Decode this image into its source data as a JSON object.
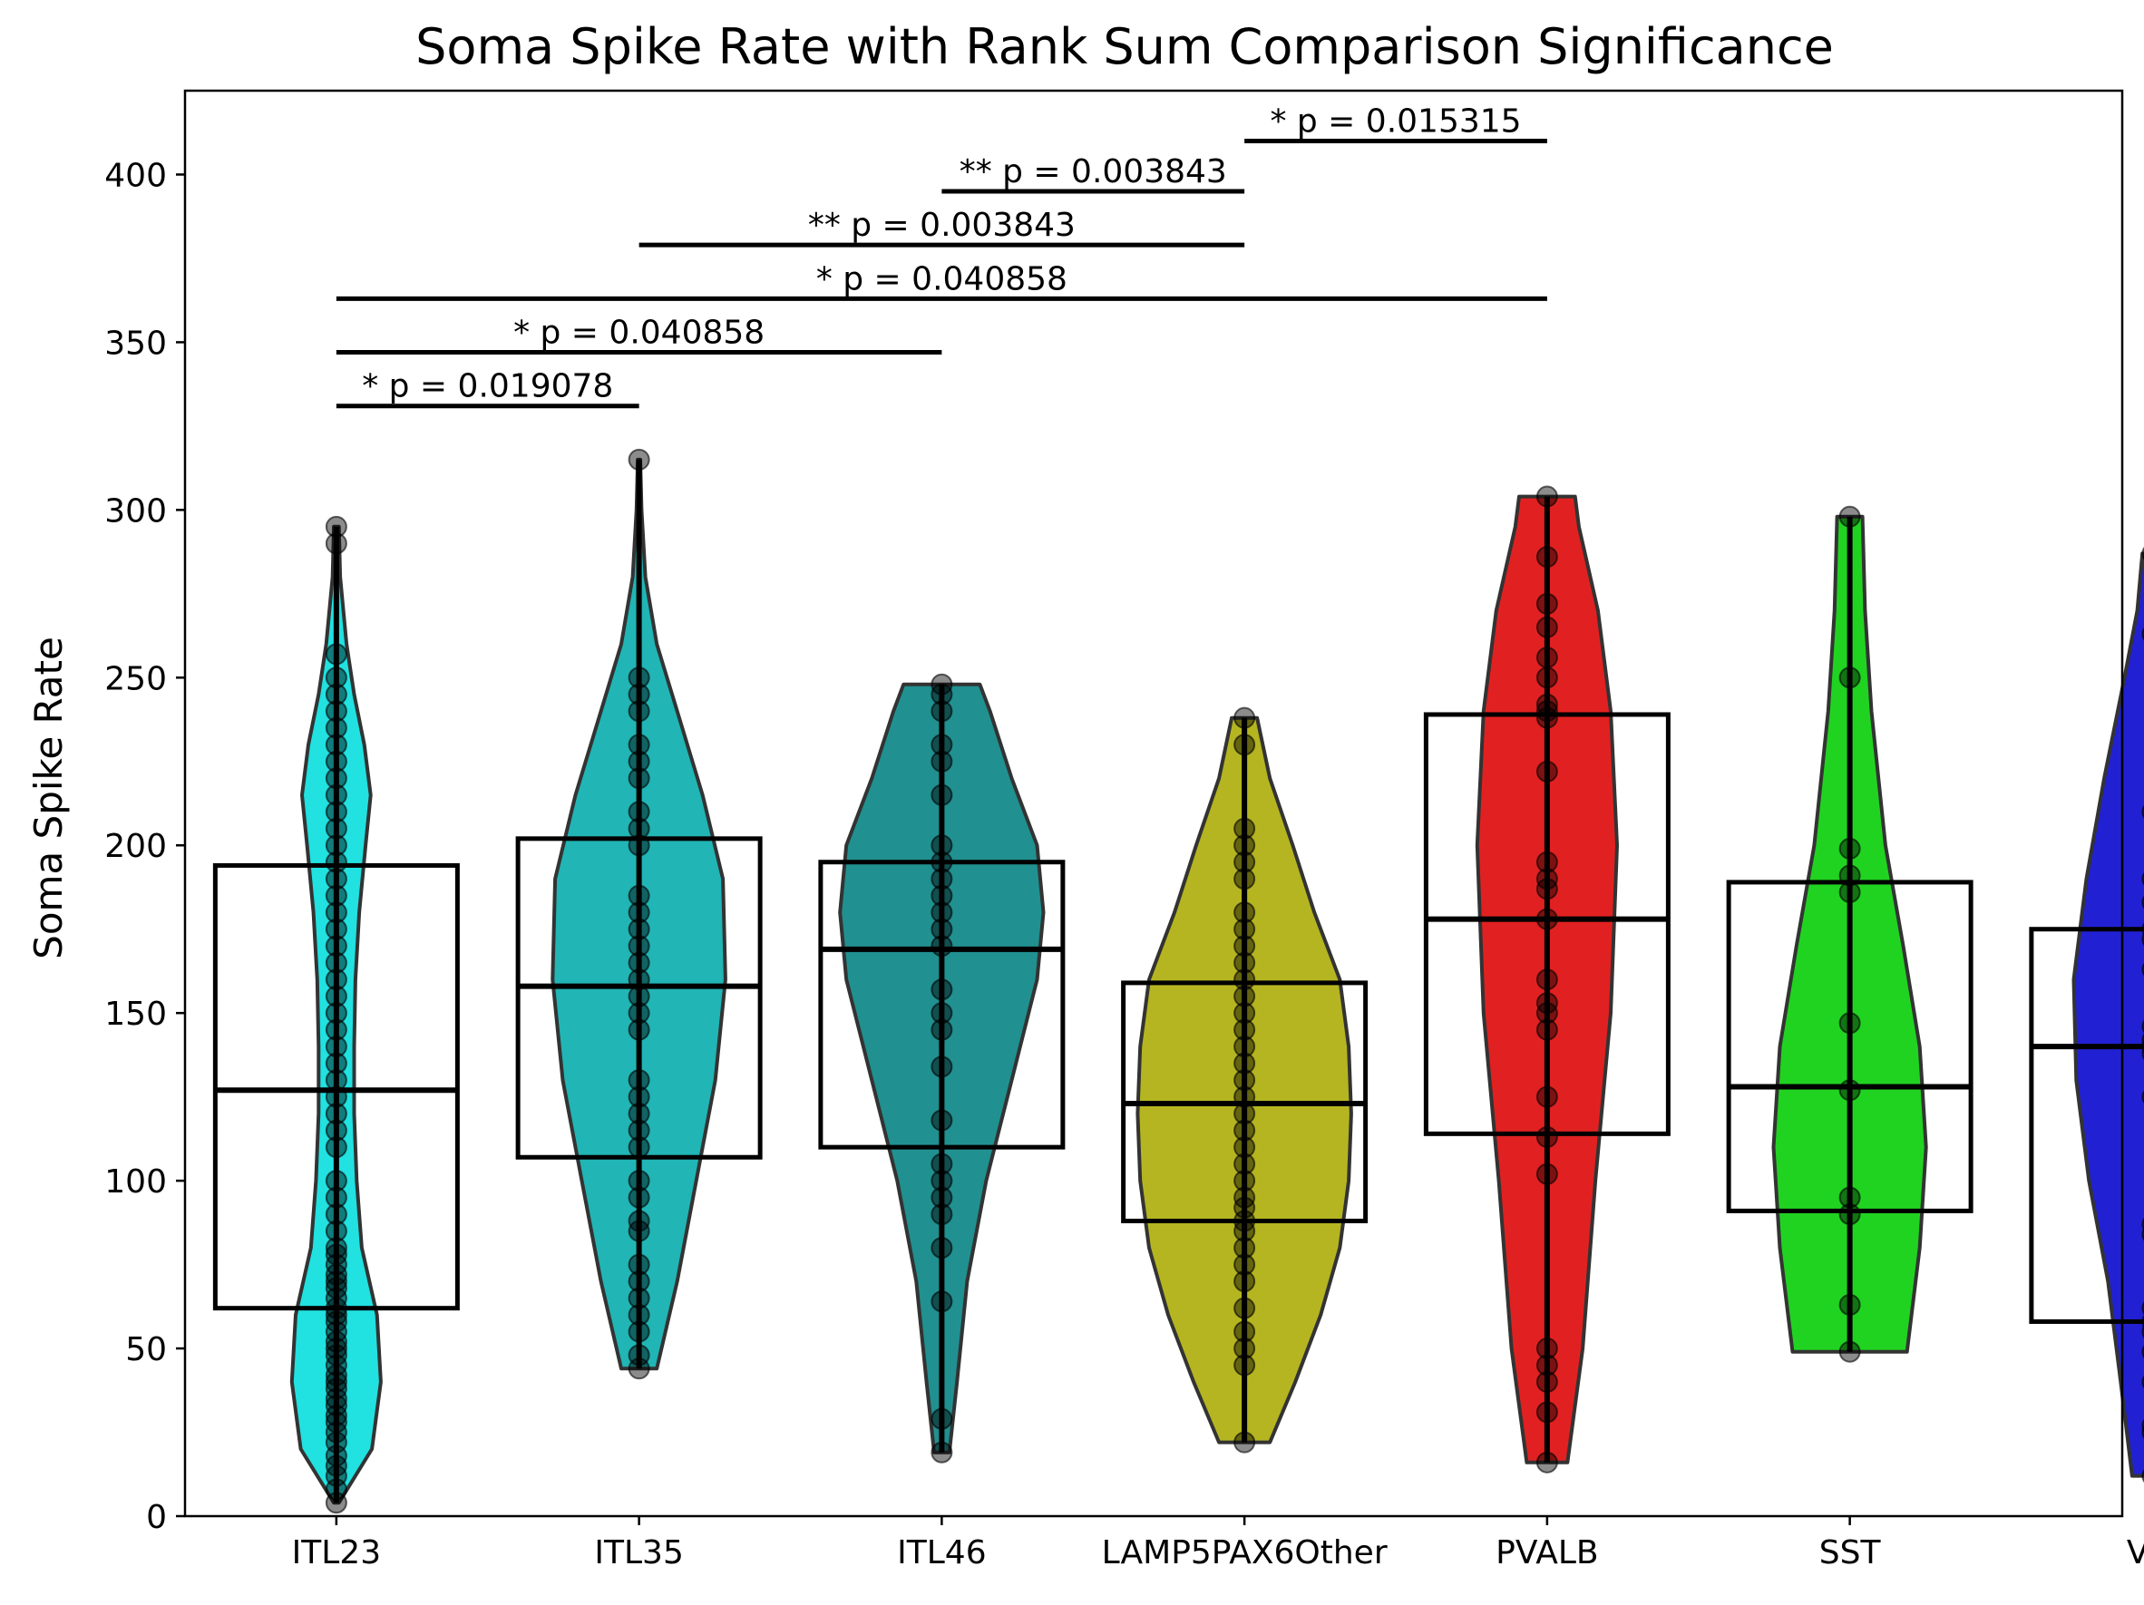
{
  "chart_data": {
    "type": "violin",
    "title": "Soma Spike Rate with Rank Sum Comparison Significance",
    "xlabel": "",
    "ylabel": "Soma Spike Rate",
    "ylim": [
      0,
      425
    ],
    "yticks": [
      0,
      50,
      100,
      150,
      200,
      250,
      300,
      350,
      400
    ],
    "categories": [
      "ITL23",
      "ITL35",
      "ITL46",
      "LAMP5PAX6Other",
      "PVALB",
      "SST",
      "VIP"
    ],
    "groups": [
      {
        "name": "ITL23",
        "color": "#00dddd",
        "min": 4,
        "max": 295,
        "q1": 62,
        "median": 127,
        "q3": 194,
        "points": [
          4,
          8,
          12,
          15,
          18,
          22,
          25,
          28,
          30,
          33,
          35,
          38,
          40,
          42,
          45,
          48,
          50,
          52,
          55,
          58,
          60,
          62,
          65,
          68,
          70,
          72,
          75,
          78,
          80,
          85,
          90,
          95,
          100,
          110,
          115,
          120,
          125,
          130,
          135,
          140,
          145,
          150,
          155,
          160,
          165,
          170,
          175,
          180,
          185,
          190,
          195,
          200,
          205,
          210,
          215,
          220,
          225,
          230,
          235,
          240,
          245,
          250,
          257,
          290,
          295
        ],
        "violin": [
          [
            4,
            0.02
          ],
          [
            20,
            0.28
          ],
          [
            40,
            0.35
          ],
          [
            60,
            0.32
          ],
          [
            80,
            0.2
          ],
          [
            100,
            0.16
          ],
          [
            120,
            0.14
          ],
          [
            140,
            0.14
          ],
          [
            160,
            0.15
          ],
          [
            180,
            0.18
          ],
          [
            200,
            0.23
          ],
          [
            215,
            0.27
          ],
          [
            230,
            0.22
          ],
          [
            245,
            0.14
          ],
          [
            260,
            0.08
          ],
          [
            280,
            0.03
          ],
          [
            295,
            0.02
          ]
        ]
      },
      {
        "name": "ITL35",
        "color": "#00aaaa",
        "min": 44,
        "max": 315,
        "q1": 107,
        "median": 158,
        "q3": 202,
        "points": [
          44,
          48,
          55,
          60,
          65,
          70,
          75,
          85,
          88,
          95,
          100,
          110,
          115,
          120,
          125,
          130,
          145,
          150,
          155,
          160,
          165,
          170,
          175,
          180,
          185,
          200,
          205,
          210,
          220,
          225,
          230,
          240,
          245,
          250,
          315
        ],
        "violin": [
          [
            44,
            0.14
          ],
          [
            70,
            0.3
          ],
          [
            100,
            0.45
          ],
          [
            130,
            0.6
          ],
          [
            160,
            0.68
          ],
          [
            190,
            0.66
          ],
          [
            215,
            0.5
          ],
          [
            240,
            0.3
          ],
          [
            260,
            0.14
          ],
          [
            280,
            0.05
          ],
          [
            300,
            0.02
          ],
          [
            315,
            0.01
          ]
        ]
      },
      {
        "name": "ITL46",
        "color": "#008080",
        "min": 19,
        "max": 248,
        "q1": 110,
        "median": 169,
        "q3": 195,
        "points": [
          19,
          29,
          64,
          80,
          90,
          95,
          100,
          105,
          118,
          134,
          145,
          150,
          157,
          170,
          175,
          180,
          185,
          190,
          195,
          200,
          215,
          225,
          230,
          240,
          245,
          248
        ],
        "violin": [
          [
            19,
            0.06
          ],
          [
            40,
            0.12
          ],
          [
            70,
            0.2
          ],
          [
            100,
            0.35
          ],
          [
            130,
            0.55
          ],
          [
            160,
            0.75
          ],
          [
            180,
            0.8
          ],
          [
            200,
            0.75
          ],
          [
            220,
            0.55
          ],
          [
            240,
            0.38
          ],
          [
            248,
            0.3
          ]
        ]
      },
      {
        "name": "LAMP5PAX6Other",
        "color": "#aaaa00",
        "min": 22,
        "max": 238,
        "q1": 88,
        "median": 123,
        "q3": 159,
        "points": [
          22,
          45,
          50,
          55,
          62,
          70,
          75,
          80,
          85,
          88,
          92,
          95,
          100,
          105,
          110,
          115,
          120,
          125,
          130,
          135,
          140,
          145,
          150,
          155,
          160,
          165,
          170,
          175,
          180,
          190,
          195,
          200,
          205,
          230,
          238
        ],
        "violin": [
          [
            22,
            0.2
          ],
          [
            40,
            0.4
          ],
          [
            60,
            0.6
          ],
          [
            80,
            0.75
          ],
          [
            100,
            0.82
          ],
          [
            120,
            0.84
          ],
          [
            140,
            0.82
          ],
          [
            160,
            0.75
          ],
          [
            180,
            0.55
          ],
          [
            200,
            0.38
          ],
          [
            220,
            0.2
          ],
          [
            238,
            0.1
          ]
        ]
      },
      {
        "name": "PVALB",
        "color": "#dd0000",
        "min": 16,
        "max": 304,
        "q1": 114,
        "median": 178,
        "q3": 239,
        "points": [
          16,
          31,
          40,
          45,
          50,
          102,
          113,
          125,
          145,
          150,
          153,
          160,
          178,
          187,
          190,
          195,
          222,
          238,
          240,
          242,
          250,
          256,
          265,
          272,
          286,
          304
        ],
        "violin": [
          [
            16,
            0.16
          ],
          [
            50,
            0.28
          ],
          [
            100,
            0.38
          ],
          [
            150,
            0.5
          ],
          [
            200,
            0.55
          ],
          [
            240,
            0.5
          ],
          [
            270,
            0.4
          ],
          [
            295,
            0.25
          ],
          [
            304,
            0.22
          ]
        ]
      },
      {
        "name": "SST",
        "color": "#00cc00",
        "min": 49,
        "max": 298,
        "q1": 91,
        "median": 128,
        "q3": 189,
        "points": [
          49,
          63,
          90,
          95,
          127,
          147,
          186,
          191,
          199,
          250,
          298
        ],
        "violin": [
          [
            49,
            0.45
          ],
          [
            80,
            0.55
          ],
          [
            110,
            0.6
          ],
          [
            140,
            0.55
          ],
          [
            170,
            0.42
          ],
          [
            200,
            0.28
          ],
          [
            240,
            0.17
          ],
          [
            270,
            0.12
          ],
          [
            298,
            0.1
          ]
        ]
      },
      {
        "name": "VIP",
        "color": "#0000cc",
        "min": 12,
        "max": 287,
        "q1": 58,
        "median": 140,
        "q3": 175,
        "points": [
          12,
          25,
          27,
          40,
          49,
          55,
          58,
          62,
          84,
          87,
          125,
          138,
          140,
          142,
          146,
          163,
          172,
          175,
          183,
          190,
          210,
          263,
          287
        ],
        "violin": [
          [
            12,
            0.16
          ],
          [
            40,
            0.25
          ],
          [
            70,
            0.35
          ],
          [
            100,
            0.5
          ],
          [
            130,
            0.6
          ],
          [
            160,
            0.62
          ],
          [
            190,
            0.52
          ],
          [
            220,
            0.38
          ],
          [
            250,
            0.22
          ],
          [
            270,
            0.12
          ],
          [
            287,
            0.08
          ]
        ]
      }
    ],
    "significance": [
      {
        "from": "ITL23",
        "to": "ITL35",
        "y": 331,
        "label": "* p = 0.019078"
      },
      {
        "from": "ITL23",
        "to": "ITL46",
        "y": 347,
        "label": "* p = 0.040858"
      },
      {
        "from": "ITL23",
        "to": "PVALB",
        "y": 363,
        "label": "* p = 0.040858"
      },
      {
        "from": "ITL35",
        "to": "LAMP5PAX6Other",
        "y": 379,
        "label": "** p = 0.003843"
      },
      {
        "from": "ITL46",
        "to": "LAMP5PAX6Other",
        "y": 395,
        "label": "** p = 0.003843"
      },
      {
        "from": "LAMP5PAX6Other",
        "to": "PVALB",
        "y": 410,
        "label": "* p = 0.015315"
      }
    ]
  }
}
